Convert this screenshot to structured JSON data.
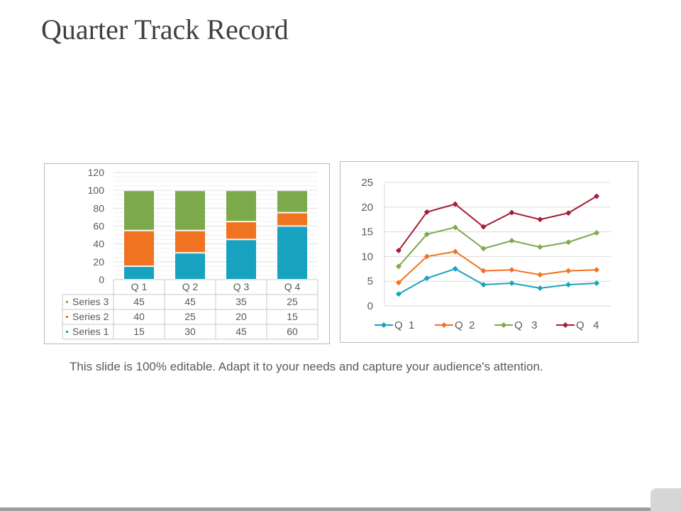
{
  "title": "Quarter Track Record",
  "caption": "This slide is 100% editable. Adapt it to your needs and capture your audience's attention.",
  "chart_data": [
    {
      "type": "bar",
      "stacked": true,
      "categories": [
        "Q 1",
        "Q 2",
        "Q 3",
        "Q 4"
      ],
      "series": [
        {
          "name": "Series 1",
          "values": [
            15,
            30,
            45,
            60
          ],
          "color": "#17a2c0"
        },
        {
          "name": "Series 2",
          "values": [
            40,
            25,
            20,
            15
          ],
          "color": "#f07322"
        },
        {
          "name": "Series 3",
          "values": [
            45,
            45,
            35,
            25
          ],
          "color": "#7caa4a"
        }
      ],
      "table_order": [
        "Series 3",
        "Series 2",
        "Series 1"
      ],
      "ylim": [
        0,
        120
      ],
      "yticks": [
        0,
        20,
        40,
        60,
        80,
        100,
        120
      ],
      "grid": true,
      "data_table": true
    },
    {
      "type": "line",
      "x": [
        1,
        2,
        3,
        4,
        5,
        6,
        7,
        8
      ],
      "series": [
        {
          "name": "Q  1",
          "values": [
            2.4,
            5.6,
            7.5,
            4.3,
            4.6,
            3.6,
            4.3,
            4.6
          ],
          "color": "#17a2c0"
        },
        {
          "name": "Q  2",
          "values": [
            4.7,
            10.0,
            11.0,
            7.1,
            7.3,
            6.3,
            7.1,
            7.3
          ],
          "color": "#f07322"
        },
        {
          "name": "Q   3",
          "values": [
            8.0,
            14.5,
            15.9,
            11.6,
            13.2,
            11.9,
            12.9,
            14.8
          ],
          "color": "#7caa4a"
        },
        {
          "name": "Q   4",
          "values": [
            11.2,
            19.0,
            20.6,
            16.0,
            18.9,
            17.5,
            18.8,
            22.2
          ],
          "color": "#a51d36"
        }
      ],
      "ylim": [
        0,
        25
      ],
      "yticks": [
        0,
        5,
        10,
        15,
        20,
        25
      ],
      "grid": true,
      "legend": "bottom"
    }
  ]
}
